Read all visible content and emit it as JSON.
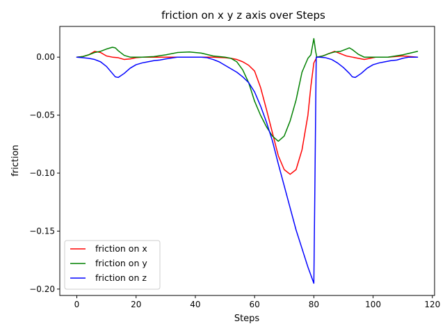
{
  "chart_data": {
    "type": "line",
    "title": "friction on x y z axis over Steps",
    "xlabel": "Steps",
    "ylabel": "friction",
    "xlim": [
      -5.75,
      120.75
    ],
    "ylim": [
      -0.2055,
      0.0265
    ],
    "xticks": [
      0,
      20,
      40,
      60,
      80,
      100,
      120
    ],
    "yticks": [
      0.0,
      -0.05,
      -0.1,
      -0.15,
      -0.2
    ],
    "ytick_labels": [
      "0.00",
      "−0.05",
      "−0.10",
      "−0.15",
      "−0.20"
    ],
    "grid": false,
    "legend_position": "lower-left",
    "series": [
      {
        "name": "friction on x",
        "color": "#ff0000",
        "points": [
          [
            0,
            0
          ],
          [
            2,
            0.0005
          ],
          [
            4,
            0.002
          ],
          [
            6,
            0.005
          ],
          [
            8,
            0.004
          ],
          [
            10,
            0.001
          ],
          [
            12,
            0
          ],
          [
            14,
            -0.0005
          ],
          [
            16,
            -0.002
          ],
          [
            18,
            -0.0015
          ],
          [
            20,
            -0.0005
          ],
          [
            22,
            0
          ],
          [
            26,
            0
          ],
          [
            30,
            0
          ],
          [
            34,
            0
          ],
          [
            38,
            0
          ],
          [
            42,
            0
          ],
          [
            46,
            0
          ],
          [
            50,
            -0.0005
          ],
          [
            52,
            -0.001
          ],
          [
            54,
            -0.002
          ],
          [
            56,
            -0.004
          ],
          [
            58,
            -0.007
          ],
          [
            60,
            -0.012
          ],
          [
            62,
            -0.026
          ],
          [
            64,
            -0.045
          ],
          [
            66,
            -0.065
          ],
          [
            68,
            -0.085
          ],
          [
            70,
            -0.097
          ],
          [
            72,
            -0.101
          ],
          [
            74,
            -0.097
          ],
          [
            76,
            -0.08
          ],
          [
            78,
            -0.05
          ],
          [
            79,
            -0.025
          ],
          [
            80,
            -0.005
          ],
          [
            81,
            0
          ],
          [
            83,
            0.001
          ],
          [
            85,
            0.003
          ],
          [
            87,
            0.005
          ],
          [
            89,
            0.003
          ],
          [
            91,
            0.001
          ],
          [
            93,
            0
          ],
          [
            95,
            -0.001
          ],
          [
            97,
            -0.002
          ],
          [
            99,
            -0.001
          ],
          [
            101,
            0
          ],
          [
            105,
            0
          ],
          [
            110,
            0.001
          ],
          [
            115,
            0
          ]
        ]
      },
      {
        "name": "friction on y",
        "color": "#008000",
        "points": [
          [
            0,
            0
          ],
          [
            2,
            0.0005
          ],
          [
            4,
            0.002
          ],
          [
            6,
            0.004
          ],
          [
            8,
            0.005
          ],
          [
            10,
            0.007
          ],
          [
            12,
            0.0085
          ],
          [
            13,
            0.008
          ],
          [
            14,
            0.0055
          ],
          [
            16,
            0.0015
          ],
          [
            18,
            0
          ],
          [
            22,
            0
          ],
          [
            26,
            0.0005
          ],
          [
            30,
            0.002
          ],
          [
            34,
            0.004
          ],
          [
            38,
            0.0045
          ],
          [
            42,
            0.0035
          ],
          [
            46,
            0.001
          ],
          [
            50,
            0
          ],
          [
            52,
            -0.001
          ],
          [
            54,
            -0.004
          ],
          [
            56,
            -0.011
          ],
          [
            58,
            -0.022
          ],
          [
            60,
            -0.038
          ],
          [
            62,
            -0.05
          ],
          [
            64,
            -0.06
          ],
          [
            66,
            -0.068
          ],
          [
            68,
            -0.0725
          ],
          [
            70,
            -0.068
          ],
          [
            72,
            -0.055
          ],
          [
            74,
            -0.037
          ],
          [
            76,
            -0.013
          ],
          [
            78,
            -0.001
          ],
          [
            79,
            0.002
          ],
          [
            80,
            0.016
          ],
          [
            80.6,
            0.005
          ],
          [
            81,
            0
          ],
          [
            83,
            0.001
          ],
          [
            85,
            0.003
          ],
          [
            87,
            0.0045
          ],
          [
            89,
            0.005
          ],
          [
            91,
            0.007
          ],
          [
            92,
            0.008
          ],
          [
            93,
            0.0065
          ],
          [
            95,
            0.0025
          ],
          [
            97,
            0
          ],
          [
            101,
            0
          ],
          [
            105,
            0
          ],
          [
            110,
            0.002
          ],
          [
            115,
            0.005
          ]
        ]
      },
      {
        "name": "friction on z",
        "color": "#0000ff",
        "points": [
          [
            0,
            0
          ],
          [
            2,
            -0.0005
          ],
          [
            4,
            -0.001
          ],
          [
            6,
            -0.002
          ],
          [
            8,
            -0.004
          ],
          [
            10,
            -0.008
          ],
          [
            12,
            -0.014
          ],
          [
            13,
            -0.017
          ],
          [
            14,
            -0.0175
          ],
          [
            16,
            -0.014
          ],
          [
            18,
            -0.0095
          ],
          [
            20,
            -0.0065
          ],
          [
            22,
            -0.005
          ],
          [
            24,
            -0.004
          ],
          [
            26,
            -0.003
          ],
          [
            28,
            -0.0025
          ],
          [
            30,
            -0.0015
          ],
          [
            34,
            0
          ],
          [
            38,
            0
          ],
          [
            42,
            0
          ],
          [
            44,
            -0.0005
          ],
          [
            46,
            -0.002
          ],
          [
            48,
            -0.004
          ],
          [
            50,
            -0.007
          ],
          [
            52,
            -0.01
          ],
          [
            54,
            -0.013
          ],
          [
            56,
            -0.017
          ],
          [
            58,
            -0.022
          ],
          [
            60,
            -0.03
          ],
          [
            62,
            -0.042
          ],
          [
            64,
            -0.056
          ],
          [
            66,
            -0.072
          ],
          [
            68,
            -0.092
          ],
          [
            70,
            -0.111
          ],
          [
            72,
            -0.13
          ],
          [
            74,
            -0.149
          ],
          [
            76,
            -0.165
          ],
          [
            78,
            -0.181
          ],
          [
            80,
            -0.195
          ],
          [
            80.4,
            -0.1
          ],
          [
            80.8,
            0
          ],
          [
            82,
            0
          ],
          [
            84,
            -0.0005
          ],
          [
            86,
            -0.002
          ],
          [
            88,
            -0.005
          ],
          [
            90,
            -0.009
          ],
          [
            92,
            -0.014
          ],
          [
            93,
            -0.017
          ],
          [
            94,
            -0.0175
          ],
          [
            96,
            -0.014
          ],
          [
            98,
            -0.0095
          ],
          [
            100,
            -0.0065
          ],
          [
            102,
            -0.005
          ],
          [
            104,
            -0.004
          ],
          [
            106,
            -0.003
          ],
          [
            108,
            -0.0025
          ],
          [
            110,
            -0.001
          ],
          [
            112,
            0
          ],
          [
            115,
            0
          ]
        ]
      }
    ]
  }
}
